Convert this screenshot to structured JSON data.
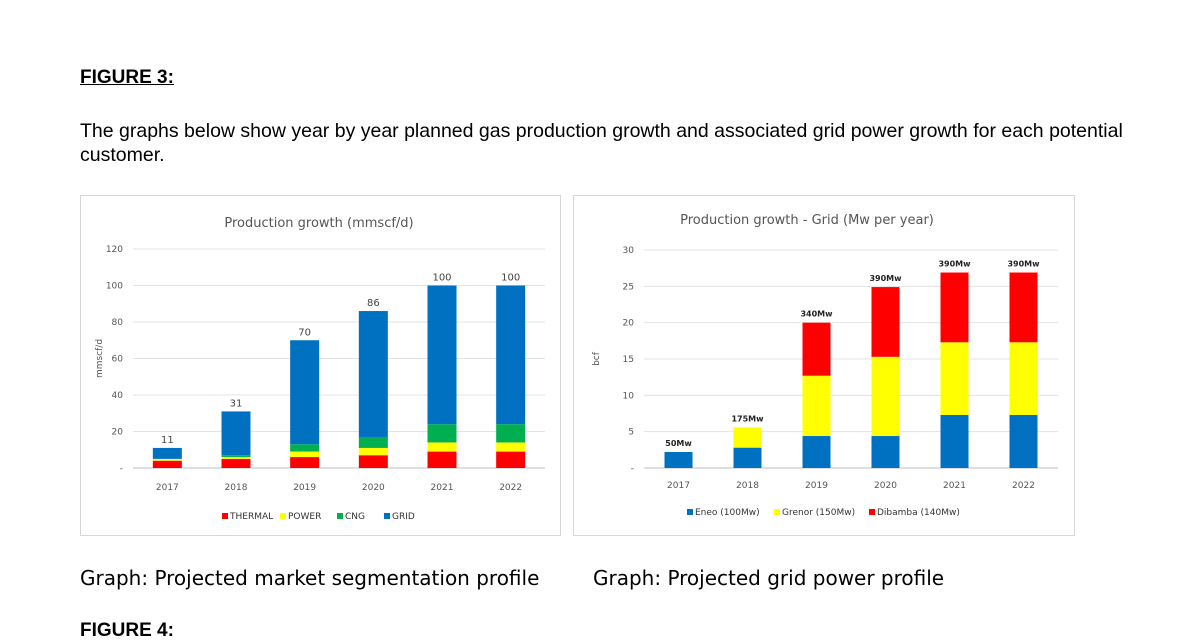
{
  "page": {
    "figure_title": "FIGURE 3:",
    "intro": "The graphs below show year by year planned gas production growth and associated grid power growth for each potential customer.",
    "caption_left": "Graph: Projected market segmentation profile",
    "caption_right": "Graph: Projected grid power profile",
    "next_figure_title": "FIGURE 4:"
  },
  "chart_data": [
    {
      "type": "bar",
      "stacked": true,
      "title": "Production growth (mmscf/d)",
      "xlabel": "",
      "ylabel": "mmscf/d",
      "ylim": [
        0,
        120
      ],
      "yticks": [
        0,
        20,
        40,
        60,
        80,
        100,
        120
      ],
      "ytick_labels": [
        "-",
        "20",
        "40",
        "60",
        "80",
        "100",
        "120"
      ],
      "grid": true,
      "legend": "bottom",
      "categories": [
        "2017",
        "2018",
        "2019",
        "2020",
        "2021",
        "2022"
      ],
      "series": [
        {
          "name": "THERMAL",
          "color": "#ff0000",
          "values": [
            4,
            5,
            6,
            7,
            9,
            9
          ]
        },
        {
          "name": "POWER",
          "color": "#ffff00",
          "values": [
            1,
            1,
            3,
            4,
            5,
            5
          ]
        },
        {
          "name": "CNG",
          "color": "#00b050",
          "values": [
            0,
            1,
            4,
            6,
            10,
            10
          ]
        },
        {
          "name": "GRID",
          "color": "#0070c0",
          "values": [
            6,
            24,
            57,
            69,
            76,
            76
          ]
        }
      ],
      "totals": [
        "11",
        "31",
        "70",
        "86",
        "100",
        "100"
      ]
    },
    {
      "type": "bar",
      "stacked": true,
      "title": "Production growth - Grid  (Mw per year)",
      "xlabel": "",
      "ylabel": "bcf",
      "ylim": [
        0,
        30
      ],
      "yticks": [
        0,
        5,
        10,
        15,
        20,
        25,
        30
      ],
      "ytick_labels": [
        "-",
        "5",
        "10",
        "15",
        "20",
        "25",
        "30"
      ],
      "grid": true,
      "legend": "bottom",
      "categories": [
        "2017",
        "2018",
        "2019",
        "2020",
        "2021",
        "2022"
      ],
      "series": [
        {
          "name": "Eneo (100Mw)",
          "color": "#0070c0",
          "values": [
            2.2,
            2.8,
            4.4,
            4.4,
            7.3,
            7.3
          ]
        },
        {
          "name": "Grenor (150Mw)",
          "color": "#ffff00",
          "values": [
            0,
            2.8,
            8.3,
            10.9,
            10,
            10
          ]
        },
        {
          "name": "Dibamba (140Mw)",
          "color": "#ff0000",
          "values": [
            0,
            0,
            7.3,
            9.6,
            9.6,
            9.6
          ]
        }
      ],
      "totals": [
        "50Mw",
        "175Mw",
        "340Mw",
        "390Mw",
        "390Mw",
        "390Mw"
      ]
    }
  ]
}
